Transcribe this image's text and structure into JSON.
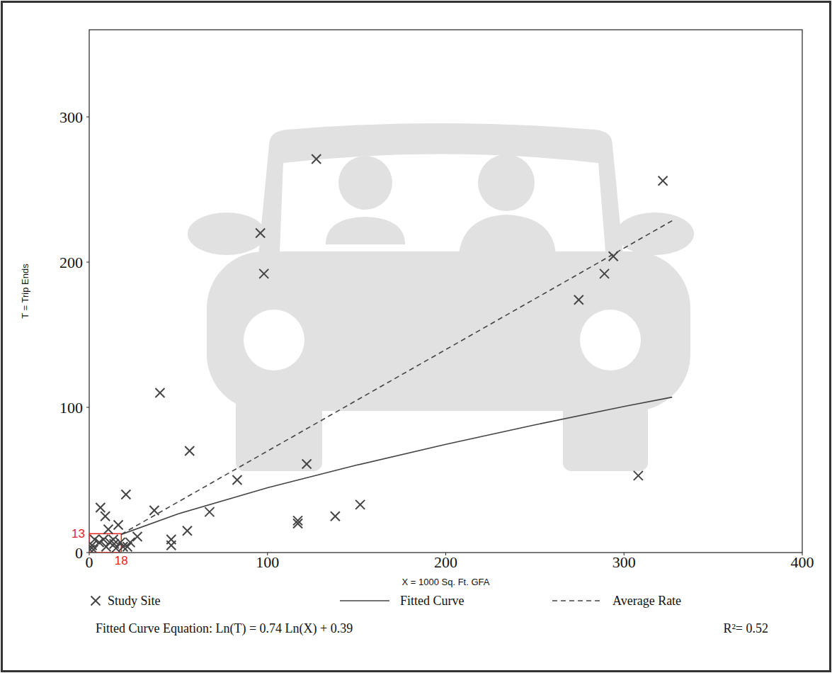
{
  "chart_data": {
    "type": "scatter",
    "x_label": "X = 1000 Sq. Ft. GFA",
    "y_label": "T = Trip Ends",
    "xlim": [
      0,
      400
    ],
    "ylim": [
      0,
      360
    ],
    "xticks": [
      0,
      100,
      200,
      300,
      400
    ],
    "yticks": [
      0,
      100,
      200,
      300
    ],
    "grid": false,
    "legend": "bottom",
    "series": [
      {
        "name": "Study Site",
        "type": "scatter",
        "marker": "x",
        "color": "#444444",
        "x": [
          127.4,
          321.8,
          96,
          98,
          294,
          289,
          274.6,
          39.7,
          56.3,
          122,
          308,
          83,
          20.6,
          152,
          67.5,
          36.5,
          6.3,
          9,
          138,
          117,
          117,
          55,
          46,
          46,
          10.7,
          16.3,
          27,
          23,
          1.6,
          3,
          5.6,
          8,
          11.5,
          14,
          13.5,
          17.5,
          19,
          2.4,
          9.5,
          21.4,
          15,
          0.5
        ],
        "values": [
          271,
          256,
          220,
          192,
          204,
          192,
          174,
          110,
          70,
          61,
          53,
          50,
          40,
          33,
          28,
          29,
          31,
          25,
          25,
          22,
          20,
          15,
          9,
          5,
          16,
          19,
          11,
          7,
          5,
          9,
          7,
          9,
          7,
          6,
          9,
          7,
          4,
          2,
          4,
          4,
          3,
          2
        ]
      },
      {
        "name": "Fitted Curve",
        "type": "line",
        "line_style": "solid",
        "color": "#444444",
        "x": [
          18,
          50,
          100,
          150,
          200,
          250,
          300,
          327
        ],
        "values": [
          12.5,
          26.7,
          44.6,
          60.2,
          74.5,
          87.9,
          100.6,
          107
        ]
      },
      {
        "name": "Average Rate",
        "type": "line",
        "line_style": "dashed",
        "color": "#444444",
        "x": [
          18,
          327
        ],
        "values": [
          12.6,
          228.5
        ]
      }
    ],
    "highlight": {
      "x": 18,
      "y": 13,
      "color": "#e8231b"
    },
    "annotations": [
      "Fitted Curve Equation: Ln(T) = 0.74 Ln(X) + 0.39",
      "R²= 0.52"
    ]
  }
}
